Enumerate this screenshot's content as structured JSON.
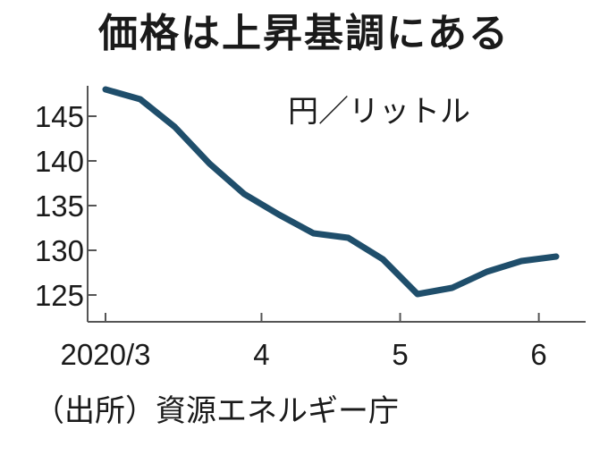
{
  "title": "価格は上昇基調にある",
  "source": "（出所）資源エネルギー庁",
  "colors": {
    "line": "#1f4e6b",
    "axis": "#555555",
    "text": "#1a1a1a"
  },
  "chart_data": {
    "type": "line",
    "title": "価格は上昇基調にある",
    "unit": "円／リットル",
    "ylim": [
      122,
      150
    ],
    "yticks": [
      125,
      130,
      135,
      140,
      145
    ],
    "xlim": [
      0,
      14
    ],
    "xticks": [
      {
        "x": 0,
        "label": "2020/3"
      },
      {
        "x": 4.5,
        "label": "4"
      },
      {
        "x": 8.5,
        "label": "5"
      },
      {
        "x": 12.5,
        "label": "6"
      }
    ],
    "grid": false,
    "series": [
      {
        "x": [
          0,
          1,
          2,
          3,
          4,
          5,
          6,
          7,
          8,
          9,
          10,
          11,
          12,
          13
        ],
        "values": [
          148.0,
          146.9,
          143.8,
          139.7,
          136.3,
          134.0,
          131.9,
          131.4,
          129.0,
          125.1,
          125.8,
          127.6,
          128.8,
          129.3
        ]
      }
    ]
  }
}
